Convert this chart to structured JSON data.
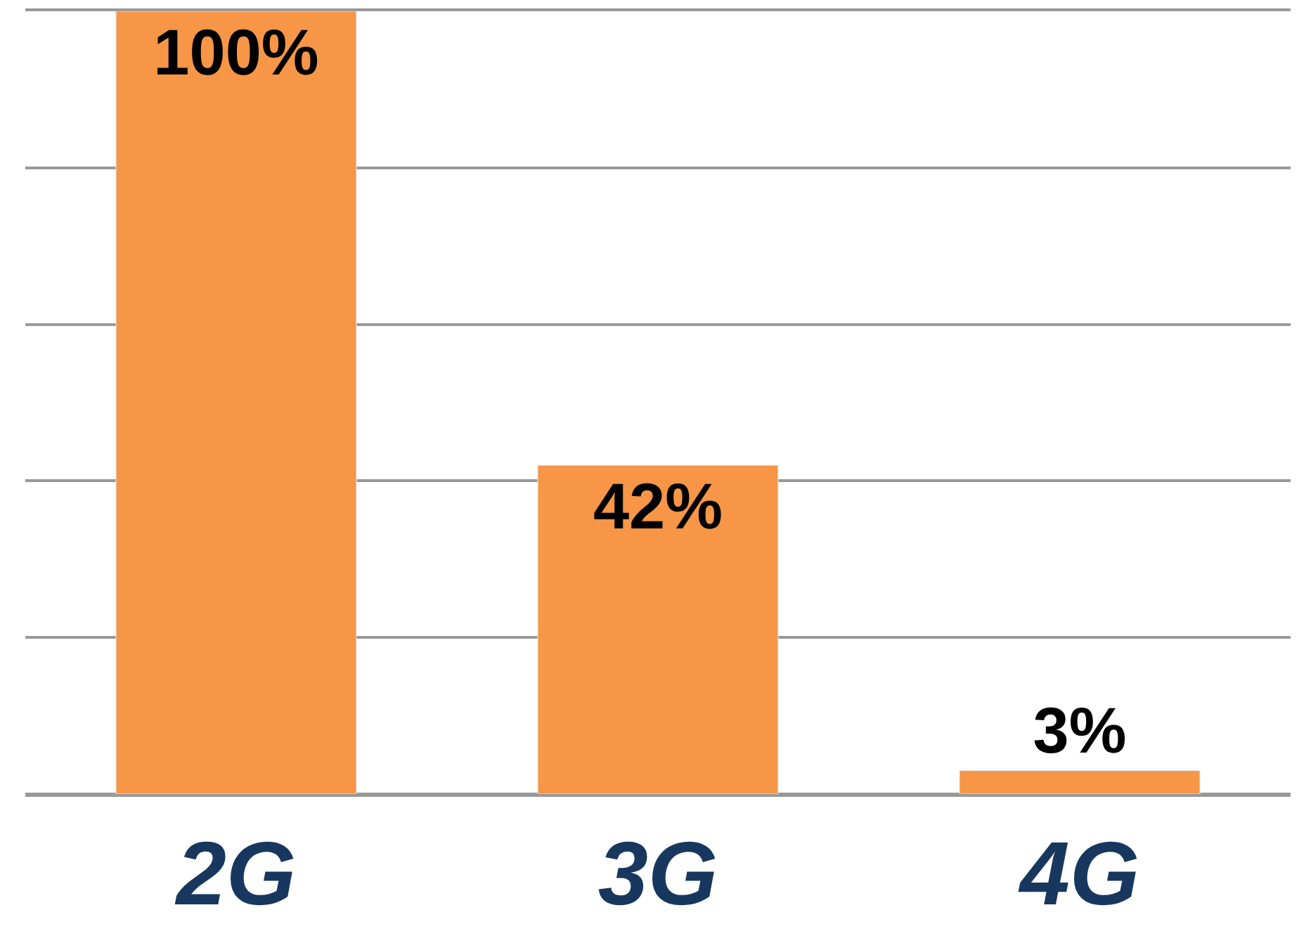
{
  "chart_data": {
    "type": "bar",
    "categories": [
      "2G",
      "3G",
      "4G"
    ],
    "values": [
      100,
      42,
      3
    ],
    "color": "#f79646",
    "value_labels": [
      "100%",
      "42%",
      "3%"
    ],
    "ylim": [
      0,
      100
    ],
    "yticks": [
      {
        "value": 0,
        "label": null
      },
      {
        "value": 20,
        "label": null
      },
      {
        "value": 40,
        "label": null
      },
      {
        "value": 60,
        "label": null
      },
      {
        "value": 80,
        "label": null
      },
      {
        "value": 100,
        "label": null
      }
    ],
    "grid": "y",
    "tick_labels": "x",
    "legend": false
  }
}
